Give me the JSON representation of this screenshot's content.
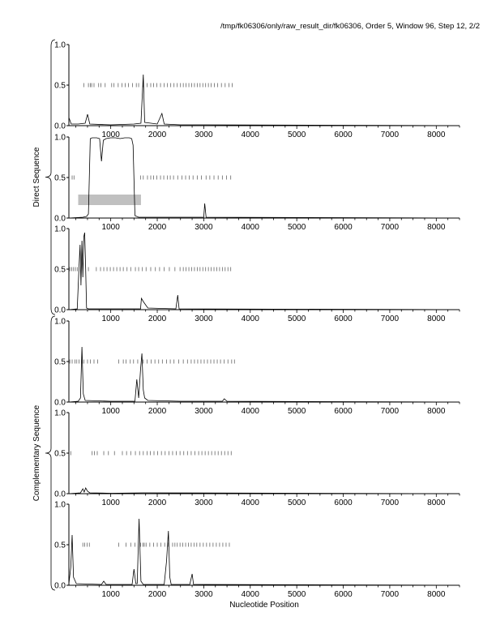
{
  "header": "/tmp/fk06306/only/raw_result_dir/fk06306, Order 5, Window 96, Step 12, 2/2",
  "xlabel": "Nucleotide Position",
  "groups": [
    {
      "label": "Direct Sequence",
      "panels": [
        0,
        1,
        2
      ]
    },
    {
      "label": "Complementary Sequence",
      "panels": [
        3,
        4,
        5
      ]
    }
  ],
  "chart_data": {
    "type": "line",
    "xlim": [
      100,
      8500
    ],
    "ylim": [
      0,
      1
    ],
    "x_ticks": [
      1000,
      2000,
      3000,
      4000,
      5000,
      6000,
      7000,
      8000
    ],
    "y_ticks": [
      "0.0",
      "0.5",
      "1.0"
    ],
    "grid": false,
    "panels": [
      {
        "curve": [
          [
            100,
            0.1
          ],
          [
            150,
            0.02
          ],
          [
            300,
            0.02
          ],
          [
            450,
            0.03
          ],
          [
            500,
            0.14
          ],
          [
            550,
            0.02
          ],
          [
            1000,
            0.01
          ],
          [
            1500,
            0.02
          ],
          [
            1650,
            0.03
          ],
          [
            1700,
            0.63
          ],
          [
            1730,
            0.04
          ],
          [
            2000,
            0.02
          ],
          [
            2100,
            0.15
          ],
          [
            2150,
            0.02
          ],
          [
            2500,
            0.01
          ],
          [
            3000,
            0.01
          ],
          [
            8500,
            0
          ]
        ],
        "ticks_y": 0.5,
        "ticks_x": [
          420,
          520,
          560,
          590,
          640,
          740,
          790,
          880,
          1020,
          1070,
          1160,
          1240,
          1310,
          1380,
          1470,
          1550,
          1600,
          1700,
          1780,
          1860,
          1920,
          1990,
          2070,
          2150,
          2220,
          2290,
          2360,
          2430,
          2500,
          2560,
          2620,
          2680,
          2740,
          2800,
          2860,
          2920,
          2980,
          3040,
          3100,
          3160,
          3230,
          3300,
          3380,
          3460,
          3540,
          3610
        ]
      },
      {
        "curve": [
          [
            100,
            0
          ],
          [
            400,
            0.01
          ],
          [
            480,
            0.02
          ],
          [
            520,
            0.05
          ],
          [
            560,
            0.98
          ],
          [
            600,
            0.99
          ],
          [
            700,
            0.99
          ],
          [
            760,
            0.98
          ],
          [
            800,
            0.7
          ],
          [
            840,
            0.96
          ],
          [
            900,
            0.98
          ],
          [
            1000,
            0.99
          ],
          [
            1100,
            0.99
          ],
          [
            1200,
            0.98
          ],
          [
            1300,
            0.99
          ],
          [
            1400,
            0.99
          ],
          [
            1450,
            0.98
          ],
          [
            1480,
            0.9
          ],
          [
            1520,
            0.03
          ],
          [
            1600,
            0.01
          ],
          [
            2000,
            0.01
          ],
          [
            3000,
            0.01
          ],
          [
            3020,
            0.18
          ],
          [
            3050,
            0.01
          ],
          [
            8500,
            0
          ]
        ],
        "band": {
          "x": [
            300,
            1650
          ],
          "y": [
            0.16,
            0.29
          ]
        },
        "ticks_y": 0.5,
        "ticks_x": [
          170,
          210,
          1640,
          1700,
          1790,
          1860,
          1920,
          1990,
          2070,
          2140,
          2220,
          2280,
          2350,
          2440,
          2530,
          2610,
          2690,
          2770,
          2860,
          2950,
          3050,
          3130,
          3220,
          3310,
          3400,
          3490,
          3580
        ]
      },
      {
        "curve": [
          [
            100,
            0
          ],
          [
            280,
            0.01
          ],
          [
            320,
            0.55
          ],
          [
            340,
            0.8
          ],
          [
            360,
            0.3
          ],
          [
            380,
            0.85
          ],
          [
            400,
            0.4
          ],
          [
            420,
            0.9
          ],
          [
            440,
            0.95
          ],
          [
            460,
            0.5
          ],
          [
            480,
            0.02
          ],
          [
            520,
            0.01
          ],
          [
            1500,
            0.01
          ],
          [
            1640,
            0.01
          ],
          [
            1660,
            0.14
          ],
          [
            1700,
            0.1
          ],
          [
            1760,
            0.05
          ],
          [
            1800,
            0.02
          ],
          [
            2400,
            0.01
          ],
          [
            2440,
            0.18
          ],
          [
            2470,
            0.01
          ],
          [
            8500,
            0
          ]
        ],
        "ticks_y": 0.5,
        "ticks_x": [
          120,
          160,
          200,
          240,
          280,
          520,
          690,
          780,
          850,
          920,
          990,
          1060,
          1130,
          1200,
          1270,
          1350,
          1430,
          1530,
          1600,
          1680,
          1760,
          1860,
          1960,
          2050,
          2150,
          2260,
          2380,
          2490,
          2560,
          2620,
          2680,
          2740,
          2800,
          2860,
          2920,
          2980,
          3040,
          3100,
          3160,
          3220,
          3280,
          3340,
          3400,
          3460,
          3520,
          3580
        ]
      },
      {
        "curve": [
          [
            100,
            0
          ],
          [
            300,
            0.01
          ],
          [
            350,
            0.05
          ],
          [
            380,
            0.68
          ],
          [
            410,
            0.1
          ],
          [
            450,
            0.02
          ],
          [
            1000,
            0.01
          ],
          [
            1520,
            0.01
          ],
          [
            1560,
            0.28
          ],
          [
            1600,
            0.05
          ],
          [
            1640,
            0.4
          ],
          [
            1670,
            0.6
          ],
          [
            1700,
            0.15
          ],
          [
            1730,
            0.05
          ],
          [
            1800,
            0.02
          ],
          [
            2500,
            0.01
          ],
          [
            3400,
            0.01
          ],
          [
            3440,
            0.04
          ],
          [
            3500,
            0.01
          ],
          [
            8500,
            0
          ]
        ],
        "ticks_y": 0.5,
        "ticks_x": [
          120,
          170,
          230,
          270,
          320,
          380,
          420,
          500,
          560,
          640,
          720,
          1170,
          1270,
          1330,
          1420,
          1490,
          1580,
          1700,
          1780,
          1870,
          1950,
          2030,
          2110,
          2200,
          2280,
          2360,
          2460,
          2560,
          2650,
          2730,
          2800,
          2870,
          2940,
          3010,
          3080,
          3150,
          3220,
          3290,
          3360,
          3440,
          3520,
          3600,
          3660
        ]
      },
      {
        "curve": [
          [
            100,
            0
          ],
          [
            350,
            0.01
          ],
          [
            400,
            0.06
          ],
          [
            430,
            0.02
          ],
          [
            460,
            0.07
          ],
          [
            500,
            0.03
          ],
          [
            550,
            0.01
          ],
          [
            1000,
            0.005
          ],
          [
            1700,
            0.01
          ],
          [
            8500,
            0
          ]
        ],
        "ticks_y": 0.5,
        "ticks_x": [
          140,
          600,
          650,
          710,
          850,
          950,
          1080,
          1250,
          1340,
          1430,
          1530,
          1620,
          1700,
          1780,
          1850,
          1930,
          2010,
          2090,
          2170,
          2250,
          2330,
          2410,
          2490,
          2570,
          2650,
          2730,
          2810,
          2890,
          2960,
          3030,
          3100,
          3170,
          3240,
          3310,
          3380,
          3450,
          3520,
          3590
        ]
      },
      {
        "curve": [
          [
            100,
            0.02
          ],
          [
            140,
            0.22
          ],
          [
            170,
            0.62
          ],
          [
            200,
            0.1
          ],
          [
            260,
            0.02
          ],
          [
            800,
            0.01
          ],
          [
            850,
            0.05
          ],
          [
            900,
            0.01
          ],
          [
            1460,
            0.01
          ],
          [
            1500,
            0.2
          ],
          [
            1540,
            0.02
          ],
          [
            1570,
            0.02
          ],
          [
            1610,
            0.82
          ],
          [
            1650,
            0.05
          ],
          [
            1700,
            0.01
          ],
          [
            2150,
            0.01
          ],
          [
            2200,
            0.3
          ],
          [
            2240,
            0.67
          ],
          [
            2270,
            0.1
          ],
          [
            2300,
            0.01
          ],
          [
            2700,
            0.01
          ],
          [
            2750,
            0.14
          ],
          [
            2780,
            0.01
          ],
          [
            8500,
            0
          ]
        ],
        "ticks_y": 0.5,
        "ticks_x": [
          400,
          440,
          490,
          540,
          1170,
          1330,
          1430,
          1520,
          1640,
          1690,
          1720,
          1760,
          1840,
          1920,
          2000,
          2080,
          2160,
          2240,
          2330,
          2380,
          2430,
          2490,
          2550,
          2610,
          2670,
          2730,
          2790,
          2850,
          2920,
          2990,
          3060,
          3130,
          3200,
          3270,
          3340,
          3410,
          3480,
          3550
        ]
      }
    ]
  }
}
